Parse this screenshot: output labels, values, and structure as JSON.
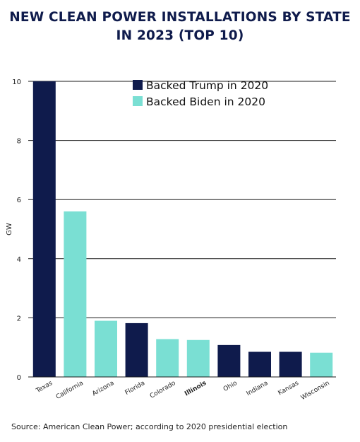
{
  "chart_data": {
    "type": "bar",
    "title_lines": [
      "NEW CLEAN POWER INSTALLATIONS BY STATE",
      "IN 2023 (TOP 10)"
    ],
    "ylabel": "GW",
    "xlabel": "",
    "ylim": [
      0,
      10
    ],
    "yticks": [
      0,
      2,
      4,
      6,
      8,
      10
    ],
    "grid": true,
    "legend_position": "top-right",
    "categories": [
      "Texas",
      "California",
      "Arizona",
      "Florida",
      "Colorado",
      "Illinois",
      "Ohio",
      "Indiana",
      "Kansas",
      "Wisconsin"
    ],
    "values": [
      10.0,
      5.6,
      1.9,
      1.82,
      1.28,
      1.25,
      1.08,
      0.85,
      0.85,
      0.82
    ],
    "groups": [
      "trump",
      "biden",
      "biden",
      "trump",
      "biden",
      "biden",
      "trump",
      "trump",
      "trump",
      "biden"
    ],
    "bold_categories": [
      "Illinois"
    ],
    "legend": [
      {
        "key": "trump",
        "label": "Backed Trump in 2020",
        "color": "#0f1b4c"
      },
      {
        "key": "biden",
        "label": "Backed Biden in 2020",
        "color": "#7adfd3"
      }
    ],
    "source": "Source: American Clean Power; according to 2020 presidential election"
  }
}
